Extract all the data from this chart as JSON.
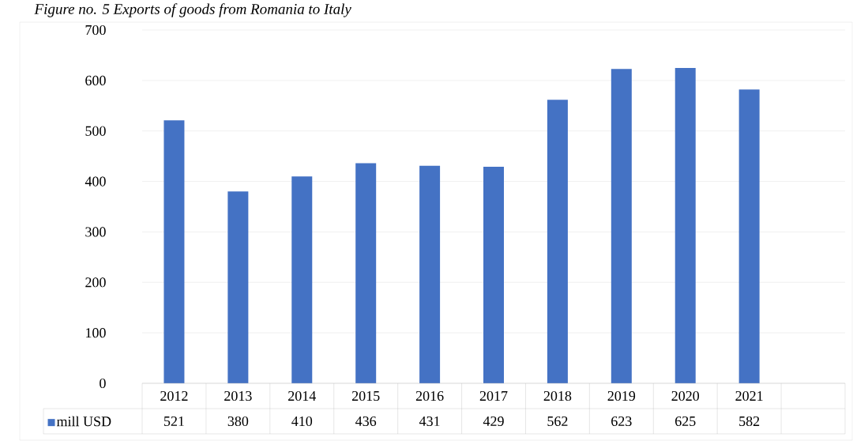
{
  "chart_data": {
    "type": "bar",
    "title": "*Figure no. 5 Exports of goods from Romania to Italy*",
    "categories": [
      "2012",
      "2013",
      "2014",
      "2015",
      "2016",
      "2017",
      "2018",
      "2019",
      "2020",
      "2021",
      null
    ],
    "series": [
      {
        "name": "mill USD",
        "color": "#4472c4",
        "values": [
          521,
          380,
          410,
          436,
          431,
          429,
          562,
          623,
          625,
          582,
          null
        ]
      }
    ],
    "ylim": [
      0,
      700
    ],
    "yticks": [
      0,
      100,
      200,
      300,
      400,
      500,
      600,
      700
    ],
    "grid": "y",
    "legend": "bottom",
    "data_labels": true
  }
}
